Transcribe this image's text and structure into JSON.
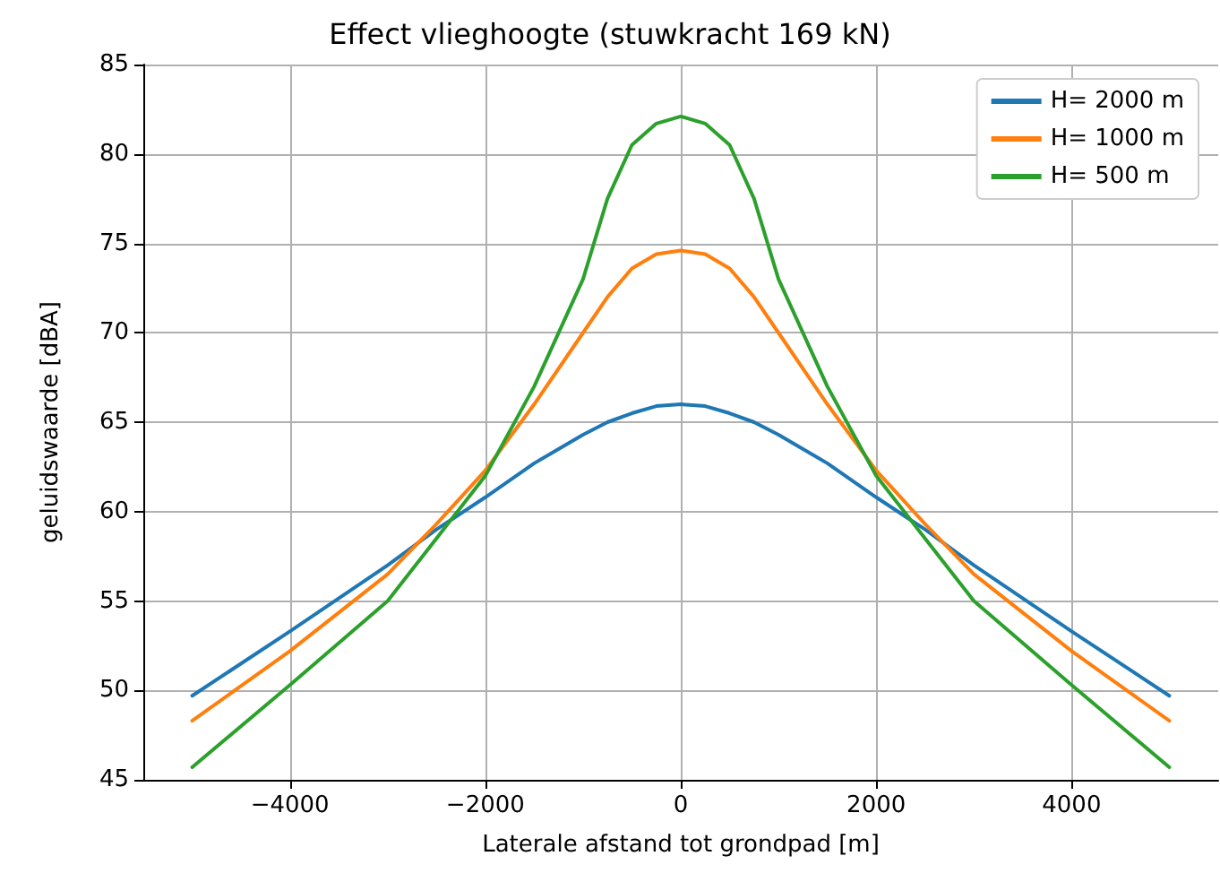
{
  "chart_data": {
    "type": "line",
    "title": "Effect vlieghoogte (stuwkracht 169 kN)",
    "xlabel": "Laterale afstand tot grondpad [m]",
    "ylabel": "geluidswaarde [dBA]",
    "x": [
      -5000,
      -4000,
      -3000,
      -2500,
      -2000,
      -1500,
      -1000,
      -750,
      -500,
      -250,
      0,
      250,
      500,
      750,
      1000,
      1500,
      2000,
      2500,
      3000,
      4000,
      5000
    ],
    "series": [
      {
        "name": "H= 2000 m",
        "color": "#1f77b4",
        "values": [
          49.7,
          53.3,
          57,
          59,
          60.8,
          62.7,
          64.3,
          65,
          65.5,
          65.9,
          66,
          65.9,
          65.5,
          65,
          64.3,
          62.7,
          60.8,
          59,
          57,
          53.3,
          49.7
        ]
      },
      {
        "name": "H= 1000 m",
        "color": "#ff7f0e",
        "values": [
          48.3,
          52.2,
          56.5,
          59.3,
          62.3,
          66,
          70,
          72,
          73.6,
          74.4,
          74.6,
          74.4,
          73.6,
          72,
          70,
          66,
          62.3,
          59.3,
          56.5,
          52.2,
          48.3
        ]
      },
      {
        "name": "H= 500 m",
        "color": "#2ca02c",
        "values": [
          45.7,
          50.3,
          55,
          58.5,
          62,
          67,
          73,
          77.5,
          80.5,
          81.7,
          82.1,
          81.7,
          80.5,
          77.5,
          73,
          67,
          62,
          58.5,
          55,
          50.3,
          45.7
        ]
      }
    ],
    "xlim": [
      -5500,
      5500
    ],
    "xticks": [
      -4000,
      -2000,
      0,
      2000,
      4000
    ],
    "ylim": [
      45,
      85
    ],
    "yticks": [
      45,
      50,
      55,
      60,
      65,
      70,
      75,
      80,
      85
    ],
    "grid": true,
    "legend": "top right",
    "marker": "none",
    "line_style": "solid"
  }
}
